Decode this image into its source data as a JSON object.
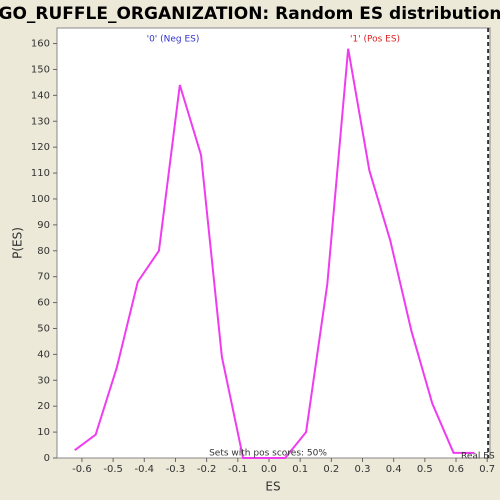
{
  "chart_data": {
    "type": "line",
    "title": "GO_RUFFLE_ORGANIZATION: Random ES distribution",
    "x_label": "ES",
    "y_label": "P(ES)",
    "x": [
      -0.623,
      -0.556,
      -0.488,
      -0.421,
      -0.353,
      -0.286,
      -0.218,
      -0.151,
      -0.083,
      -0.016,
      0.052,
      0.119,
      0.187,
      0.254,
      0.322,
      0.389,
      0.457,
      0.524,
      0.592,
      0.659
    ],
    "series": [
      {
        "name": "Random ES",
        "color": "#f03cf0",
        "values": [
          3,
          9,
          35,
          68,
          80,
          144,
          117,
          39,
          0,
          0,
          0,
          10,
          67,
          158,
          111,
          84,
          49,
          21,
          2,
          2
        ]
      }
    ],
    "xlim": [
      -0.68,
      0.709
    ],
    "ylim": [
      0,
      166
    ],
    "xticks": [
      -0.6,
      -0.5,
      -0.4,
      -0.3,
      -0.2,
      -0.1,
      {
        "value": 0,
        "label": "0.0"
      },
      0.1,
      0.2,
      0.3,
      0.4,
      0.5,
      0.6,
      0.7
    ],
    "yticks": [
      0,
      10,
      20,
      30,
      40,
      50,
      60,
      70,
      80,
      90,
      100,
      110,
      120,
      130,
      140,
      150,
      160
    ],
    "annotations": [
      {
        "text": "'0' (Neg ES)",
        "color": "#3333cc"
      },
      {
        "text": "'1' (Pos ES)",
        "color": "#dd2222"
      },
      {
        "text": "Sets with pos scores: 50%",
        "color": "#333333"
      },
      {
        "text": "Real ES",
        "color": "#333333"
      }
    ],
    "real_es": 0.703
  }
}
